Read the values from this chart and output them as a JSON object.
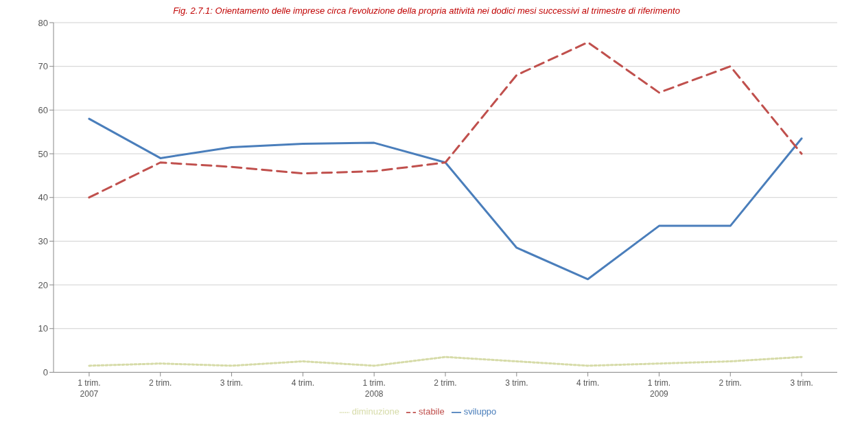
{
  "chart_data": {
    "type": "line",
    "title": "Fig. 2.7.1: Orientamento delle imprese circa l'evoluzione della propria attività nei dodici mesi successivi al trimestre di riferimento",
    "categories": [
      "1 trim.\n2007",
      "2 trim.",
      "3 trim.",
      "4 trim.",
      "1 trim.\n2008",
      "2 trim.",
      "3 trim.",
      "4 trim.",
      "1 trim.\n2009",
      "2 trim.",
      "3 trim."
    ],
    "series": [
      {
        "name": "sviluppo",
        "color": "#4a7ebb",
        "line_style": "solid",
        "values": [
          58,
          49,
          51.5,
          52.3,
          52.5,
          48,
          28.5,
          21.3,
          33.5,
          33.5,
          53.5
        ]
      },
      {
        "name": "stabile",
        "color": "#c0504d",
        "line_style": "dashed",
        "values": [
          40,
          48,
          47,
          45.5,
          46,
          48,
          68,
          75.5,
          64,
          70,
          50
        ]
      },
      {
        "name": "diminuzione",
        "color": "#d6dba8",
        "line_style": "dotted",
        "values": [
          1.5,
          2,
          1.5,
          2.5,
          1.5,
          3.5,
          2.5,
          1.5,
          2,
          2.5,
          3.5
        ]
      }
    ],
    "ylim": [
      0,
      80
    ],
    "yticks": [
      0,
      10,
      20,
      30,
      40,
      50,
      60,
      70,
      80
    ],
    "grid": "y",
    "legend": "bottom",
    "marker": "none"
  }
}
